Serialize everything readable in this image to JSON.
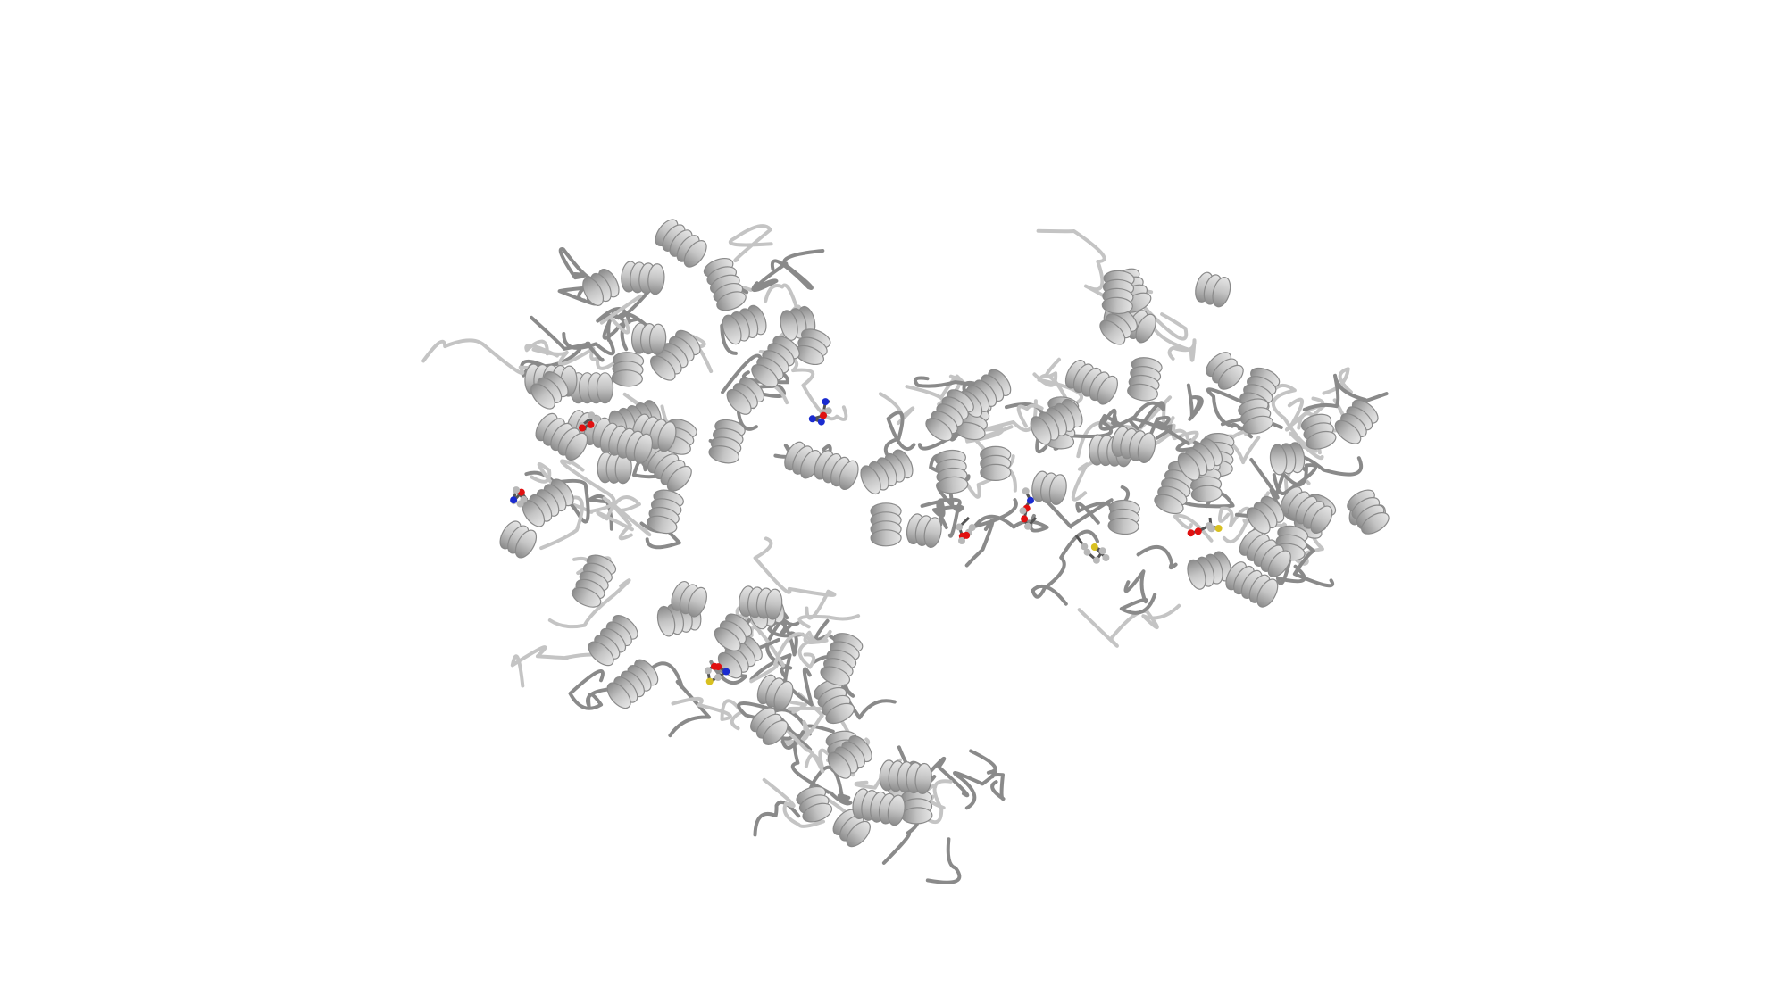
{
  "image": {
    "subject": "protein-cartoon-render",
    "background_color": "#ffffff",
    "ribbon_color": "#c4c4c4",
    "ribbon_shadow_color": "#8a8a8a",
    "ligand_carbon_color": "#b8b8b8",
    "ligand_oxygen_color": "#e01010",
    "ligand_nitrogen_color": "#1a2bd0",
    "ligand_sulfur_color": "#d8c020"
  }
}
